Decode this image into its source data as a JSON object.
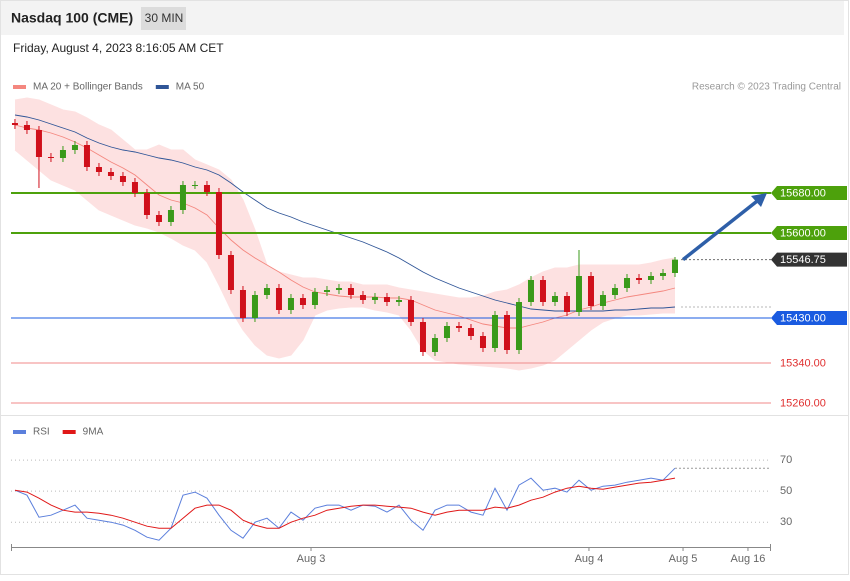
{
  "header": {
    "title": "Nasdaq 100 (CME)",
    "interval": "30 MIN",
    "timestamp": "Friday, August 4, 2023 8:16:05 AM CET"
  },
  "chart_data": [
    {
      "type": "candlestick",
      "credit": "Research © 2023 Trading Central",
      "xlim": [
        -0.33,
        63
      ],
      "ylim": [
        15250,
        15920
      ],
      "up_color": "#3a9a1a",
      "down_color": "#d0101b",
      "open": [
        15820,
        15816,
        15806,
        15752,
        15750,
        15766,
        15776,
        15732,
        15722,
        15714,
        15702,
        15680,
        15636,
        15622,
        15646,
        15696,
        15696,
        15682,
        15556,
        15486,
        15430,
        15476,
        15490,
        15446,
        15470,
        15456,
        15482,
        15486,
        15490,
        15476,
        15466,
        15472,
        15462,
        15466,
        15422,
        15362,
        15390,
        15414,
        15410,
        15394,
        15370,
        15436,
        15366,
        15462,
        15506,
        15462,
        15474,
        15442,
        15514,
        15454,
        15476,
        15490,
        15510,
        15506,
        15514,
        15520
      ],
      "high": [
        15828,
        15824,
        15814,
        15760,
        15774,
        15784,
        15784,
        15740,
        15730,
        15722,
        15710,
        15688,
        15644,
        15654,
        15704,
        15704,
        15704,
        15690,
        15564,
        15494,
        15484,
        15498,
        15498,
        15478,
        15478,
        15490,
        15494,
        15498,
        15498,
        15484,
        15480,
        15480,
        15474,
        15474,
        15430,
        15398,
        15422,
        15422,
        15418,
        15402,
        15444,
        15444,
        15470,
        15514,
        15514,
        15482,
        15482,
        15566,
        15522,
        15484,
        15498,
        15518,
        15518,
        15522,
        15528,
        15552
      ],
      "low": [
        15808,
        15798,
        15690,
        15742,
        15742,
        15758,
        15724,
        15714,
        15706,
        15694,
        15672,
        15628,
        15614,
        15614,
        15638,
        15688,
        15674,
        15548,
        15478,
        15422,
        15422,
        15468,
        15438,
        15438,
        15448,
        15448,
        15474,
        15478,
        15468,
        15458,
        15458,
        15454,
        15454,
        15414,
        15354,
        15354,
        15382,
        15402,
        15386,
        15362,
        15362,
        15358,
        15358,
        15454,
        15454,
        15454,
        15434,
        15434,
        15446,
        15446,
        15468,
        15482,
        15498,
        15498,
        15506,
        15512
      ],
      "close": [
        15816,
        15806,
        15752,
        15750,
        15766,
        15776,
        15732,
        15722,
        15714,
        15702,
        15680,
        15636,
        15622,
        15646,
        15696,
        15696,
        15682,
        15556,
        15486,
        15430,
        15476,
        15490,
        15446,
        15470,
        15456,
        15482,
        15486,
        15490,
        15476,
        15466,
        15472,
        15462,
        15466,
        15422,
        15362,
        15390,
        15414,
        15410,
        15394,
        15370,
        15436,
        15366,
        15462,
        15506,
        15462,
        15474,
        15442,
        15514,
        15454,
        15476,
        15490,
        15510,
        15506,
        15514,
        15520,
        15546.75
      ],
      "overlays": [
        {
          "name": "MA 20 + Bollinger Bands",
          "color": "#f4877f",
          "band_color": "#fde1e1",
          "values": [
            15816,
            15810,
            15806,
            15800,
            15792,
            15782,
            15770,
            15756,
            15742,
            15730,
            15716,
            15696,
            15676,
            15666,
            15660,
            15650,
            15636,
            15610,
            15586,
            15566,
            15550,
            15536,
            15522,
            15506,
            15492,
            15482,
            15478,
            15474,
            15472,
            15472,
            15472,
            15470,
            15470,
            15466,
            15456,
            15446,
            15440,
            15434,
            15426,
            15418,
            15414,
            15410,
            15410,
            15416,
            15422,
            15430,
            15436,
            15446,
            15452,
            15460,
            15466,
            15472,
            15476,
            15480,
            15484,
            15490
          ],
          "upper": [
            15866,
            15870,
            15866,
            15856,
            15846,
            15842,
            15830,
            15816,
            15806,
            15786,
            15766,
            15766,
            15776,
            15766,
            15766,
            15746,
            15736,
            15726,
            15706,
            15666,
            15606,
            15536,
            15522,
            15516,
            15510,
            15510,
            15506,
            15502,
            15502,
            15496,
            15496,
            15496,
            15490,
            15486,
            15482,
            15478,
            15474,
            15470,
            15470,
            15474,
            15482,
            15486,
            15496,
            15510,
            15522,
            15530,
            15530,
            15536,
            15536,
            15536,
            15536,
            15536,
            15536,
            15540,
            15546,
            15550
          ],
          "lower": [
            15766,
            15746,
            15726,
            15706,
            15696,
            15686,
            15666,
            15646,
            15636,
            15626,
            15616,
            15610,
            15602,
            15590,
            15576,
            15566,
            15542,
            15496,
            15446,
            15406,
            15376,
            15356,
            15350,
            15356,
            15386,
            15436,
            15446,
            15450,
            15452,
            15452,
            15446,
            15442,
            15436,
            15406,
            15366,
            15346,
            15342,
            15338,
            15336,
            15334,
            15332,
            15330,
            15326,
            15330,
            15336,
            15346,
            15366,
            15386,
            15406,
            15422,
            15430,
            15436,
            15436,
            15438,
            15440,
            15440
          ]
        },
        {
          "name": "MA 50",
          "color": "#2f5597",
          "values": [
            15836,
            15832,
            15826,
            15818,
            15810,
            15802,
            15790,
            15780,
            15772,
            15766,
            15762,
            15756,
            15750,
            15746,
            15740,
            15732,
            15726,
            15716,
            15700,
            15682,
            15666,
            15650,
            15640,
            15632,
            15622,
            15614,
            15606,
            15598,
            15590,
            15582,
            15572,
            15562,
            15550,
            15536,
            15522,
            15510,
            15500,
            15490,
            15482,
            15474,
            15466,
            15460,
            15454,
            15448,
            15446,
            15444,
            15444,
            15444,
            15444,
            15444,
            15446,
            15446,
            15448,
            15450,
            15450,
            15452
          ]
        }
      ],
      "levels": [
        {
          "value": 15680,
          "label": "15680.00",
          "color": "#4da10c",
          "line": "solid",
          "style": "box"
        },
        {
          "value": 15600,
          "label": "15600.00",
          "color": "#4da10c",
          "line": "solid",
          "style": "box"
        },
        {
          "value": 15546.75,
          "label": "15546.75",
          "color": "#333333",
          "line": "dotted",
          "style": "box"
        },
        {
          "value": 15430,
          "label": "15430.00",
          "color": "#1a5be0",
          "line": "solid",
          "style": "box"
        },
        {
          "value": 15340,
          "label": "15340.00",
          "color": "#f08a8a",
          "line": "solid",
          "style": "text"
        },
        {
          "value": 15260,
          "label": "15260.00",
          "color": "#f08a8a",
          "line": "solid",
          "style": "text"
        }
      ]
    },
    {
      "type": "line",
      "xlim": [
        -0.33,
        63
      ],
      "ylim": [
        14,
        83
      ],
      "yticks": [
        30,
        50,
        70
      ],
      "xticks": [
        {
          "value": 24.67,
          "label": "Aug 3"
        },
        {
          "value": 47.83,
          "label": "Aug 4"
        },
        {
          "value": 55.67,
          "label": "Aug 5"
        },
        {
          "value": 61.08,
          "label": "Aug 16"
        }
      ],
      "series": [
        {
          "name": "RSI",
          "color": "#5b7fdc",
          "values": [
            50.6,
            47.4,
            33.2,
            34.5,
            37.7,
            41.0,
            32.6,
            31.3,
            30.0,
            28.1,
            24.8,
            20.3,
            18.4,
            26.1,
            47.4,
            49.4,
            45.5,
            34.5,
            24.8,
            19.7,
            30.0,
            32.6,
            26.1,
            36.5,
            31.3,
            39.0,
            41.0,
            41.0,
            37.7,
            41.0,
            40.3,
            36.5,
            41.0,
            31.3,
            24.8,
            37.7,
            41.0,
            41.0,
            36.5,
            34.5,
            51.9,
            37.7,
            53.9,
            58.4,
            50.6,
            51.9,
            49.4,
            57.1,
            50.6,
            53.2,
            53.9,
            55.8,
            57.1,
            58.4,
            57.1,
            64.8
          ]
        },
        {
          "name": "9MA",
          "color": "#e01818",
          "values": [
            50.6,
            49.4,
            45.5,
            41.0,
            37.7,
            36.5,
            36.5,
            35.8,
            34.5,
            32.6,
            30.0,
            27.4,
            26.1,
            26.1,
            32.6,
            39.0,
            41.0,
            41.0,
            37.7,
            31.3,
            28.1,
            26.1,
            26.1,
            30.0,
            32.6,
            34.5,
            37.7,
            39.0,
            40.3,
            41.0,
            41.0,
            40.3,
            39.7,
            39.0,
            36.5,
            34.5,
            36.5,
            37.7,
            37.7,
            37.7,
            39.7,
            39.0,
            41.0,
            44.2,
            46.1,
            49.4,
            51.9,
            53.2,
            51.9,
            51.3,
            52.6,
            53.9,
            55.2,
            55.8,
            57.1,
            58.4
          ]
        }
      ]
    }
  ]
}
